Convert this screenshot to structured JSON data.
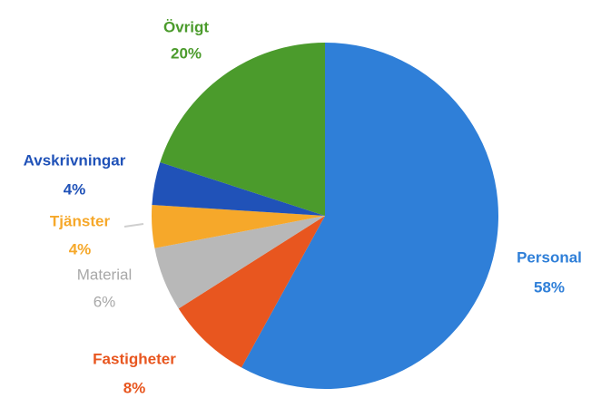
{
  "chart_data": {
    "type": "pie",
    "categories": [
      "Personal",
      "Fastigheter",
      "Material",
      "Tjänster",
      "Avskrivningar",
      "Övrigt"
    ],
    "values": [
      58,
      8,
      6,
      4,
      4,
      20
    ],
    "value_labels": [
      "58%",
      "8%",
      "6%",
      "4%",
      "4%",
      "20%"
    ],
    "colors": [
      "#2f7fd8",
      "#e8561f",
      "#b8b8b8",
      "#f6a82a",
      "#2052b8",
      "#4b9b2c"
    ]
  }
}
